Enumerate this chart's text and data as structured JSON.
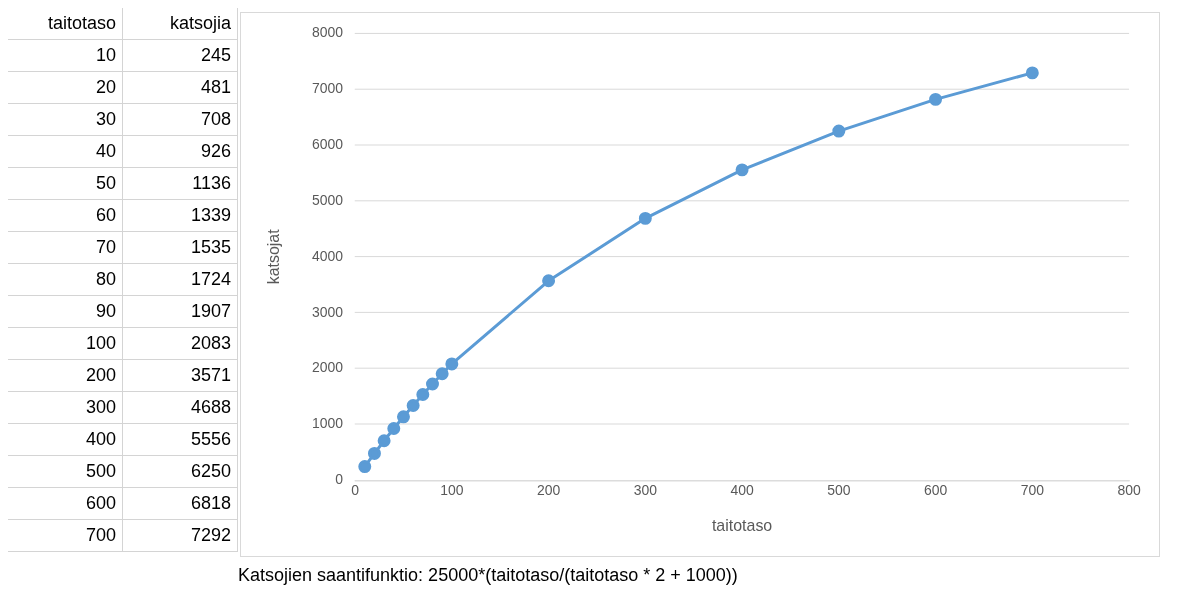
{
  "chart_data": [
    {
      "type": "heatmap",
      "data_labels": true,
      "ylabel": "taitotaso",
      "categories": [
        "katsojia"
      ],
      "y_categories": [
        "10",
        "20",
        "30",
        "40",
        "50",
        "60",
        "70",
        "80",
        "90",
        "100",
        "200",
        "300",
        "400",
        "500",
        "600",
        "700"
      ],
      "cells": [
        [
          245
        ],
        [
          481
        ],
        [
          708
        ],
        [
          926
        ],
        [
          1136
        ],
        [
          1339
        ],
        [
          1535
        ],
        [
          1724
        ],
        [
          1907
        ],
        [
          2083
        ],
        [
          3571
        ],
        [
          4688
        ],
        [
          5556
        ],
        [
          6250
        ],
        [
          6818
        ],
        [
          7292
        ]
      ]
    },
    {
      "type": "line",
      "xlabel": "taitotaso",
      "ylabel": "katsojat",
      "x": [
        10,
        20,
        30,
        40,
        50,
        60,
        70,
        80,
        90,
        100,
        200,
        300,
        400,
        500,
        600,
        700
      ],
      "series": [
        {
          "color": "#5b9bd5",
          "values": [
            245,
            481,
            708,
            926,
            1136,
            1339,
            1535,
            1724,
            1907,
            2083,
            3571,
            4688,
            5556,
            6250,
            6818,
            7292
          ]
        }
      ],
      "xlim": [
        0,
        800
      ],
      "xticks": [
        0,
        100,
        200,
        300,
        400,
        500,
        600,
        700,
        800
      ],
      "ylim": [
        0,
        8000
      ],
      "yticks": [
        0,
        1000,
        2000,
        3000,
        4000,
        5000,
        6000,
        7000,
        8000
      ],
      "grid": "y",
      "marker": "circle",
      "line_style": "solid",
      "annotations": [
        "Katsojien saantifunktio: 25000*(taitotaso/(taitotaso * 2 + 1000))"
      ]
    }
  ]
}
